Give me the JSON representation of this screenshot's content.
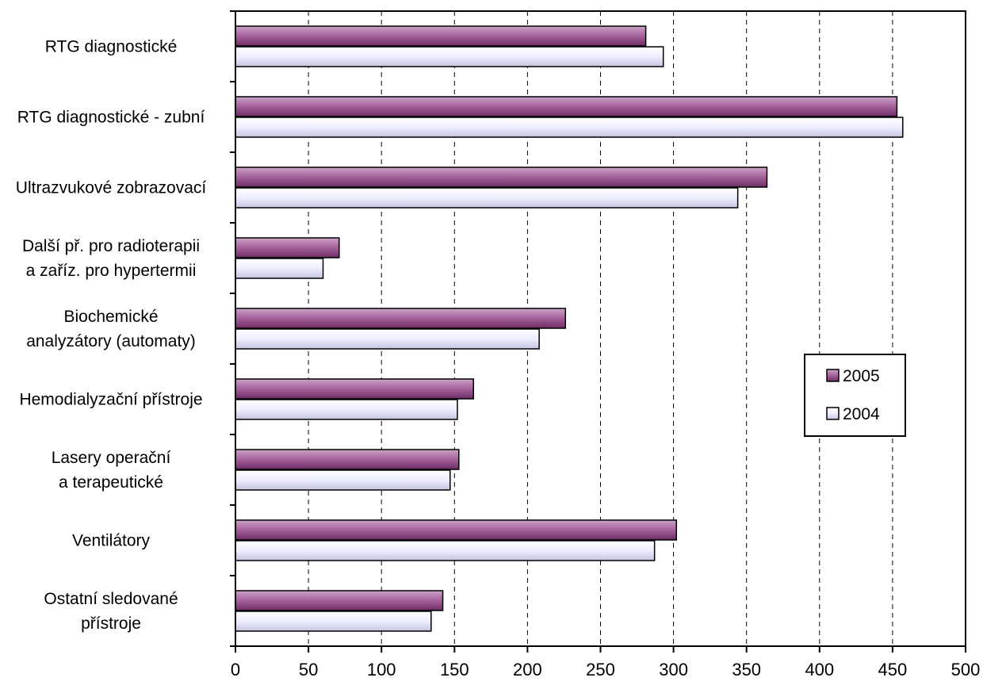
{
  "chart_data": {
    "type": "bar",
    "orientation": "horizontal",
    "categories": [
      [
        "RTG diagnostické"
      ],
      [
        "RTG diagnostické  - zubní"
      ],
      [
        "Ultrazvukové zobrazovací"
      ],
      [
        "Další př. pro radioterapii",
        "a zaříz. pro hypertermii"
      ],
      [
        "Biochemické",
        "analyzátory (automaty)"
      ],
      [
        "Hemodialyzační přístroje"
      ],
      [
        "Lasery operační",
        "a terapeutické"
      ],
      [
        "Ventilátory"
      ],
      [
        "Ostatní sledované",
        "přístroje"
      ]
    ],
    "series": [
      {
        "name": "2005",
        "color": "#a05a97",
        "values": [
          281,
          453,
          364,
          71,
          226,
          163,
          153,
          302,
          142
        ]
      },
      {
        "name": "2004",
        "color": "#eeeeff",
        "values": [
          293,
          457,
          344,
          60,
          208,
          152,
          147,
          287,
          134
        ]
      }
    ],
    "xlim": [
      0,
      500
    ],
    "xticks": [
      0,
      50,
      100,
      150,
      200,
      250,
      300,
      350,
      400,
      450,
      500
    ],
    "grid": "vertical-dashed",
    "legend_position": "right",
    "title": "",
    "xlabel": "",
    "ylabel": ""
  }
}
